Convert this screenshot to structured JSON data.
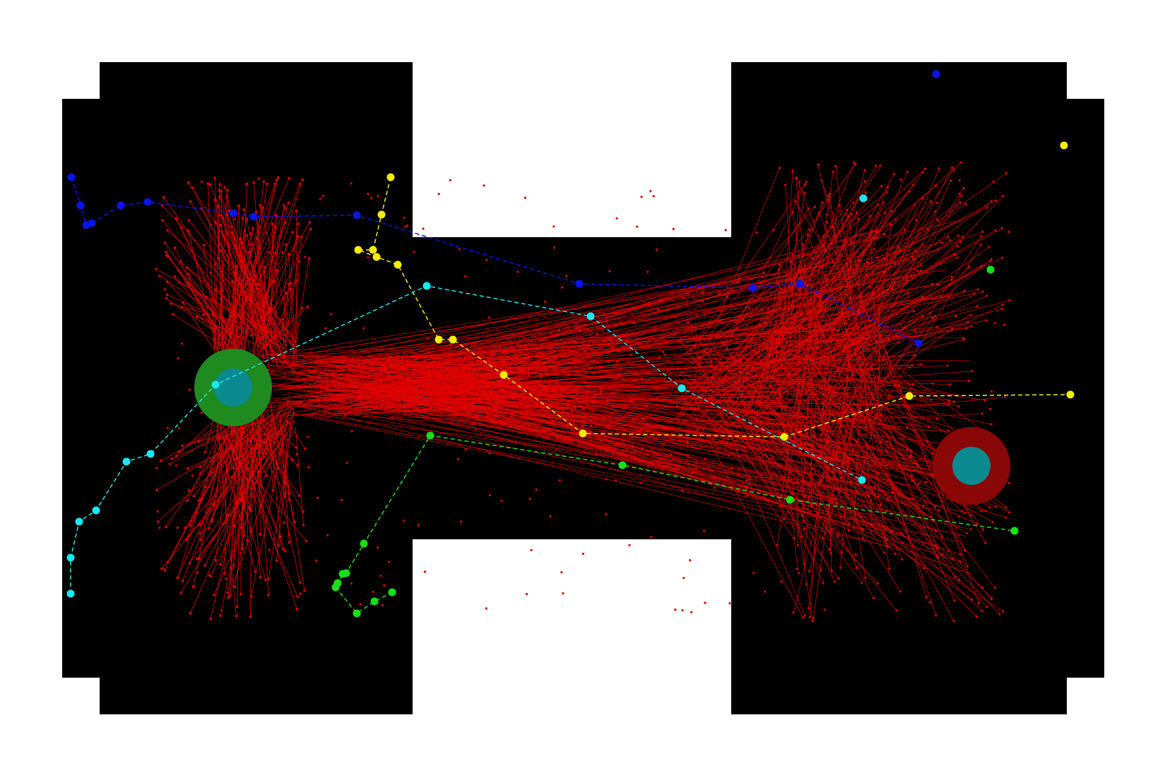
{
  "map": {
    "background": "#ffffff",
    "field_color": "#000000"
  },
  "colors": {
    "units": "#e00000",
    "blue": "#0a14ee",
    "yellow": "#f5ee00",
    "cyan": "#1ae8f0",
    "green": "#17e017",
    "base_core": "#0a8a8f",
    "base_left_ring": "#1f8a1f",
    "base_right_ring": "#8a0707"
  },
  "bases": [
    {
      "name": "left-base",
      "ring": "base_left_ring"
    },
    {
      "name": "right-base",
      "ring": "base_right_ring"
    }
  ],
  "paths": [
    {
      "name": "blue-path",
      "color": "blue"
    },
    {
      "name": "yellow-path",
      "color": "yellow"
    },
    {
      "name": "cyan-path",
      "color": "cyan"
    },
    {
      "name": "green-path",
      "color": "green"
    }
  ]
}
